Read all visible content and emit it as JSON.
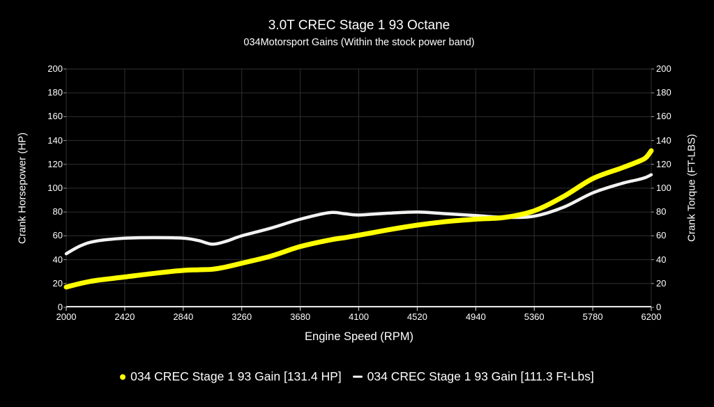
{
  "header": {
    "title": "3.0T CREC Stage 1 93 Octane",
    "subtitle": "034Motorsport Gains (Within the stock power band)"
  },
  "chart_data": {
    "type": "line",
    "title": "3.0T CREC Stage 1 93 Octane",
    "subtitle": "034Motorsport Gains (Within the stock power band)",
    "xlabel": "Engine Speed (RPM)",
    "ylabel_left": "Crank Horsepower (HP)",
    "ylabel_right": "Crank Torque (FT-LBS)",
    "xlim": [
      2000,
      6200
    ],
    "ylim": [
      0,
      200
    ],
    "x_ticks": [
      2000,
      2420,
      2840,
      3260,
      3680,
      4100,
      4520,
      4940,
      5360,
      5780,
      6200
    ],
    "y_ticks": [
      0,
      20,
      40,
      60,
      80,
      100,
      120,
      140,
      160,
      180,
      200
    ],
    "grid": true,
    "legend_position": "bottom",
    "background_color": "#000000",
    "gridline_color": "#303030",
    "axis_color": "#e6e6e6",
    "text_color": "#ffffff",
    "x": [
      2000,
      2100,
      2210,
      2420,
      2630,
      2840,
      2950,
      3050,
      3150,
      3260,
      3470,
      3680,
      3890,
      4000,
      4100,
      4310,
      4520,
      4730,
      4940,
      5150,
      5360,
      5570,
      5780,
      5990,
      6100,
      6160,
      6200
    ],
    "series": [
      {
        "name": "034 CREC Stage 1 93 Gain [131.4 HP]",
        "axis": "left",
        "color": "#ffff00",
        "marker": "dot",
        "line_width": 7,
        "values": [
          17,
          20,
          22.5,
          25.5,
          28.5,
          31,
          31.5,
          32,
          34,
          37,
          43,
          51,
          56.5,
          58.5,
          60.5,
          65,
          69,
          72,
          74,
          75.5,
          81,
          93,
          108,
          117,
          122,
          125.5,
          131.4
        ]
      },
      {
        "name": "034 CREC Stage 1 93 Gain [111.3 Ft-Lbs]",
        "axis": "right",
        "color": "#f2f2f2",
        "marker": "dash",
        "line_width": 4.5,
        "values": [
          45,
          51.5,
          55.5,
          58,
          58.5,
          58,
          56,
          53,
          55.5,
          60,
          66.5,
          74,
          79.5,
          78.5,
          77.5,
          79,
          80,
          78.5,
          77,
          75.5,
          76.5,
          84,
          96,
          104,
          107,
          109,
          111.3
        ]
      }
    ]
  }
}
